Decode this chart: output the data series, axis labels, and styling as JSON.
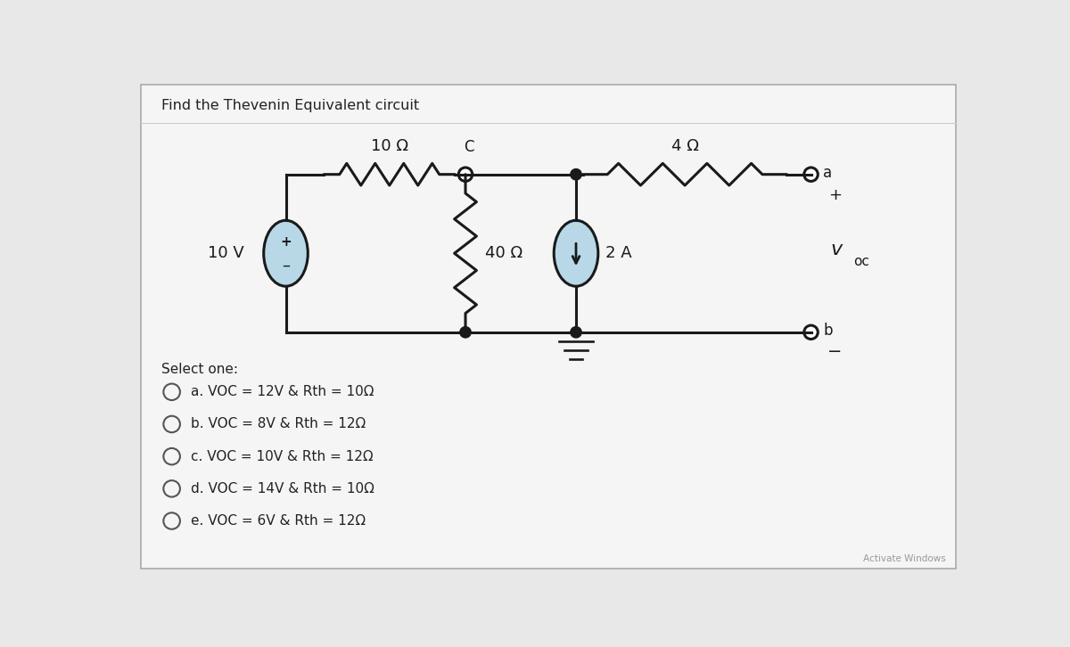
{
  "title": "Find the Thevenin Equivalent circuit",
  "outer_bg": "#f0f0f0",
  "panel_bg": "#e8e8e8",
  "circuit_bg": "#ffffff",
  "wire_color": "#1a1a1a",
  "vs_fill": "#b8d8e8",
  "cs_fill": "#b8d8e8",
  "circuit": {
    "resistor_10_label": "10 Ω",
    "resistor_4_label": "4 Ω",
    "resistor_40_label": "40 Ω",
    "voltage_label": "10 V",
    "current_label": "2 A",
    "node_c_label": "C",
    "node_a_label": "a",
    "node_b_label": "b"
  },
  "choices": [
    "a. VOC = 12V & Rth = 10Ω",
    "b. VOC = 8V & Rth = 12Ω",
    "c. VOC = 10V & Rth = 12Ω",
    "d. VOC = 14V & Rth = 10Ω",
    "e. VOC = 6V & Rth = 12Ω"
  ],
  "select_one_label": "Select one:"
}
